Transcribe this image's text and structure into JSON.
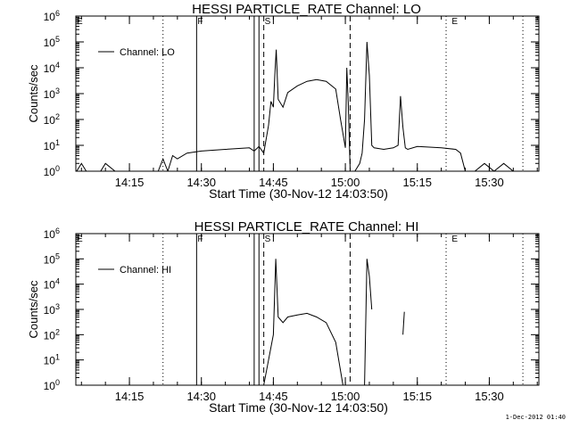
{
  "footer": {
    "stamp": "1-Dec-2012 01:40"
  },
  "chart_data": [
    {
      "type": "line",
      "title": "HESSI PARTICLE_RATE Channel: LO",
      "xlabel": "Start Time (30-Nov-12 14:03:50)",
      "ylabel": "Counts/sec",
      "yscale": "log",
      "ylim": [
        1,
        1000000
      ],
      "xlim": [
        "14:03:50",
        "15:40:20"
      ],
      "x_ticks": [
        "14:15",
        "14:30",
        "14:45",
        "15:00",
        "15:15",
        "15:30"
      ],
      "y_ticks": [
        "10^0",
        "10^1",
        "10^2",
        "10^3",
        "10^4",
        "10^5",
        "10^6"
      ],
      "legend": {
        "entries": [
          "Channel: LO"
        ],
        "position": "top-left"
      },
      "grid": false,
      "markers": [
        {
          "label": "F",
          "time": "14:29"
        },
        {
          "label": "S",
          "time": "14:43"
        },
        {
          "label": "E",
          "time": "15:22"
        }
      ],
      "vlines_solid": [
        "14:29",
        "14:41",
        "14:42"
      ],
      "vlines_dashed": [
        "14:43",
        "15:01"
      ],
      "vlines_dotted": [
        "14:22",
        "15:21",
        "15:37"
      ],
      "series": [
        {
          "name": "Channel: LO",
          "time": [
            "14:04",
            "14:05",
            "14:06",
            "14:08",
            "14:09",
            "14:10",
            "14:12",
            "14:14",
            "14:16",
            "14:18",
            "14:20",
            "14:21",
            "14:22",
            "14:23",
            "14:24",
            "14:25",
            "14:27",
            "14:30",
            "14:35",
            "14:40",
            "14:41",
            "14:42",
            "14:43",
            "14:44",
            "14:44.5",
            "14:45",
            "14:45.3",
            "14:45.6",
            "14:46",
            "14:47",
            "14:48",
            "14:50",
            "14:52",
            "14:54",
            "14:56",
            "14:58",
            "14:59",
            "15:00",
            "15:00.3",
            "15:00.6",
            "15:01",
            "15:01.5",
            "15:02",
            "15:03",
            "15:03.5",
            "15:04",
            "15:04.5",
            "15:05",
            "15:05.5",
            "15:06",
            "15:08",
            "15:10",
            "15:11",
            "15:11.5",
            "15:12",
            "15:12.5",
            "15:13",
            "15:15",
            "15:20",
            "15:23",
            "15:24",
            "15:25",
            "15:27",
            "15:29",
            "15:31",
            "15:33",
            "15:35"
          ],
          "counts": [
            1,
            2,
            1,
            1,
            1,
            2,
            1,
            1,
            1,
            1,
            1,
            1,
            3,
            1,
            4,
            3,
            5,
            6,
            7,
            8,
            6,
            9,
            5,
            60,
            500,
            300,
            5000,
            50000,
            600,
            300,
            1100,
            2000,
            3000,
            3500,
            3000,
            1500,
            100,
            8,
            10000,
            500,
            1,
            1,
            1,
            2,
            5,
            100,
            100000,
            5000,
            10,
            8,
            7,
            8,
            10,
            800,
            50,
            8,
            7,
            9,
            8,
            7,
            5,
            1,
            1,
            2,
            1,
            2,
            1
          ]
        }
      ]
    },
    {
      "type": "line",
      "title": "HESSI PARTICLE_RATE Channel: HI",
      "xlabel": "Start Time (30-Nov-12 14:03:50)",
      "ylabel": "Counts/sec",
      "yscale": "log",
      "ylim": [
        1,
        1000000
      ],
      "xlim": [
        "14:03:50",
        "15:40:20"
      ],
      "x_ticks": [
        "14:15",
        "14:30",
        "14:45",
        "15:00",
        "15:15",
        "15:30"
      ],
      "y_ticks": [
        "10^0",
        "10^1",
        "10^2",
        "10^3",
        "10^4",
        "10^5",
        "10^6"
      ],
      "legend": {
        "entries": [
          "Channel: HI"
        ],
        "position": "top-left"
      },
      "grid": false,
      "markers": [
        {
          "label": "F",
          "time": "14:29"
        },
        {
          "label": "S",
          "time": "14:43"
        },
        {
          "label": "E",
          "time": "15:22"
        }
      ],
      "vlines_solid": [
        "14:29",
        "14:41",
        "14:42"
      ],
      "vlines_dashed": [
        "14:43",
        "15:01"
      ],
      "vlines_dotted": [
        "14:22",
        "15:21",
        "15:37"
      ],
      "series": [
        {
          "name": "Channel: HI",
          "segments": [
            {
              "time": [
                "14:43",
                "14:44",
                "14:45",
                "14:45.5",
                "14:46",
                "14:47",
                "14:48",
                "14:50",
                "14:52",
                "14:54",
                "14:56",
                "14:58",
                "14:59.5"
              ],
              "counts": [
                1,
                10,
                100,
                100000,
                500,
                300,
                500,
                600,
                700,
                500,
                300,
                50,
                1
              ]
            },
            {
              "time": [
                "15:04",
                "15:04.5",
                "15:05",
                "15:05.5"
              ],
              "counts": [
                1,
                100000,
                20000,
                1000
              ]
            },
            {
              "time": [
                "15:12",
                "15:12.3"
              ],
              "counts": [
                100,
                800
              ]
            }
          ]
        }
      ]
    }
  ]
}
